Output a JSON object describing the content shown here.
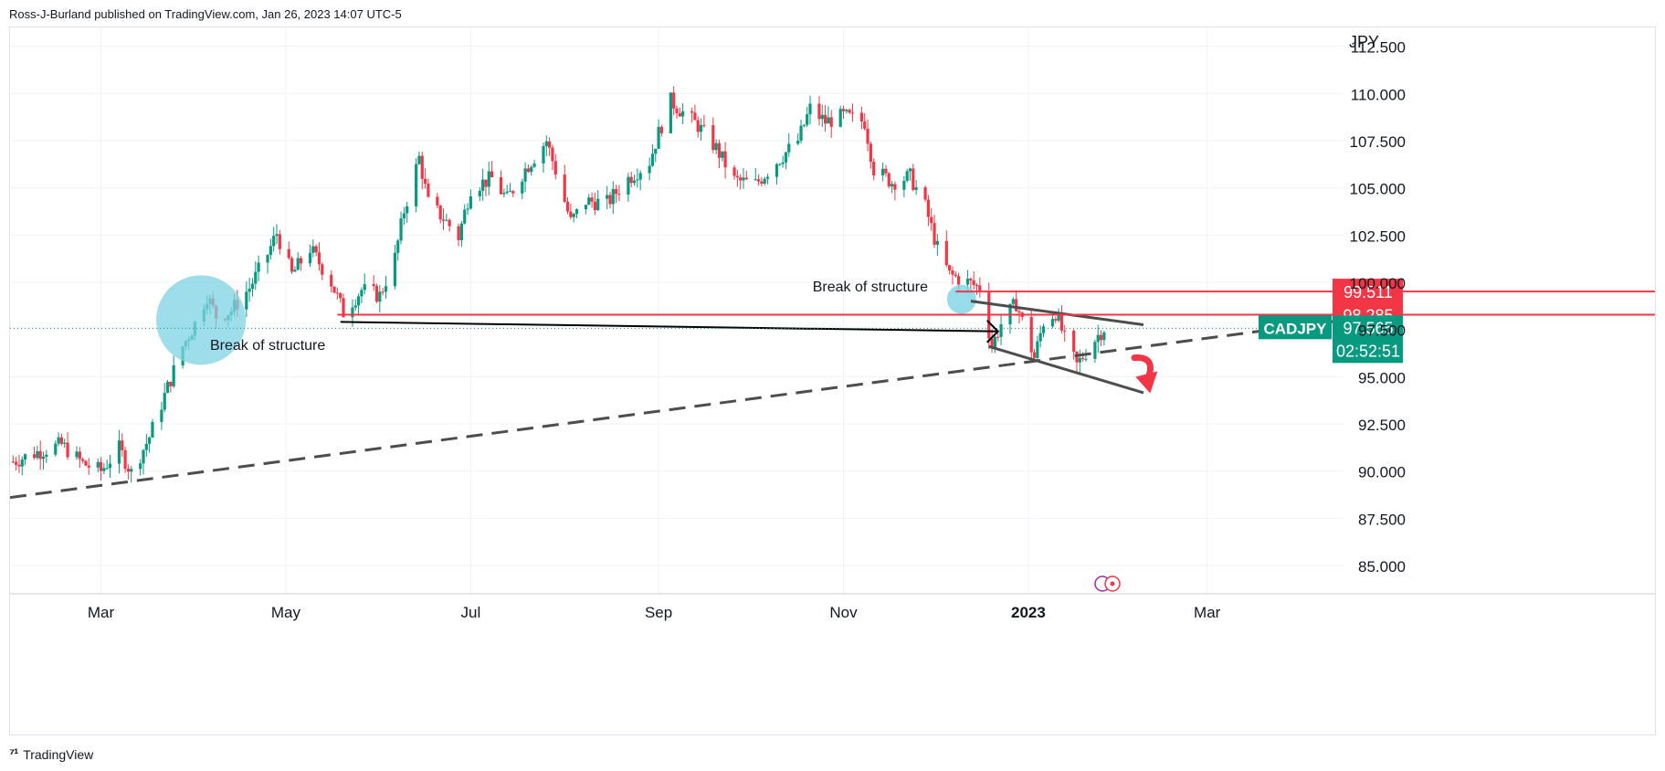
{
  "header": {
    "published": "Ross-J-Burland published on TradingView.com, Jan 26, 2023 14:07 UTC-5"
  },
  "footer": {
    "brand": "TradingView",
    "logo_icon": "tradingview-logo-icon"
  },
  "chart_data": {
    "type": "candlestick",
    "symbol": "CADJPY",
    "currency": "JPY",
    "price_axis": {
      "range": [
        83.5,
        113.5
      ],
      "ticks": [
        "112.500",
        "110.000",
        "107.500",
        "105.000",
        "102.500",
        "100.000",
        "97.500",
        "95.000",
        "92.500",
        "90.000",
        "87.500",
        "85.000"
      ],
      "tick_values": [
        112.5,
        110,
        107.5,
        105,
        102.5,
        100,
        97.5,
        95,
        92.5,
        90,
        87.5,
        85
      ]
    },
    "time_axis": {
      "range": [
        "2022-01-30",
        "2023-04-15"
      ],
      "labels": [
        {
          "text": "Mar",
          "date": "2022-03-01",
          "bold": false
        },
        {
          "text": "May",
          "date": "2022-05-01",
          "bold": false
        },
        {
          "text": "Jul",
          "date": "2022-07-01",
          "bold": false
        },
        {
          "text": "Sep",
          "date": "2022-09-01",
          "bold": false
        },
        {
          "text": "Nov",
          "date": "2022-11-01",
          "bold": false
        },
        {
          "text": "2023",
          "date": "2023-01-01",
          "bold": true
        },
        {
          "text": "Mar",
          "date": "2023-03-01",
          "bold": false
        }
      ]
    },
    "price_path": [
      [
        "2022-01-31",
        90.5
      ],
      [
        "2022-02-08",
        91.0
      ],
      [
        "2022-02-16",
        91.4
      ],
      [
        "2022-02-23",
        90.4
      ],
      [
        "2022-03-01",
        90.0
      ],
      [
        "2022-03-07",
        91.2
      ],
      [
        "2022-03-11",
        89.9
      ],
      [
        "2022-03-17",
        91.8
      ],
      [
        "2022-03-22",
        94.0
      ],
      [
        "2022-03-28",
        96.6
      ],
      [
        "2022-04-01",
        97.8
      ],
      [
        "2022-04-05",
        99.3
      ],
      [
        "2022-04-08",
        98.2
      ],
      [
        "2022-04-13",
        98.5
      ],
      [
        "2022-04-19",
        99.7
      ],
      [
        "2022-04-25",
        101.5
      ],
      [
        "2022-04-28",
        102.6
      ],
      [
        "2022-05-03",
        100.4
      ],
      [
        "2022-05-09",
        101.8
      ],
      [
        "2022-05-16",
        100.0
      ],
      [
        "2022-05-20",
        98.4
      ],
      [
        "2022-05-26",
        99.6
      ],
      [
        "2022-06-01",
        99.3
      ],
      [
        "2022-06-06",
        101.3
      ],
      [
        "2022-06-09",
        103.8
      ],
      [
        "2022-06-14",
        106.6
      ],
      [
        "2022-06-17",
        104.2
      ],
      [
        "2022-06-22",
        103.4
      ],
      [
        "2022-06-27",
        102.4
      ],
      [
        "2022-07-01",
        105.0
      ],
      [
        "2022-07-08",
        105.5
      ],
      [
        "2022-07-13",
        104.4
      ],
      [
        "2022-07-19",
        106.0
      ],
      [
        "2022-07-26",
        107.5
      ],
      [
        "2022-07-30",
        105.4
      ],
      [
        "2022-08-03",
        103.2
      ],
      [
        "2022-08-08",
        104.3
      ],
      [
        "2022-08-15",
        104.2
      ],
      [
        "2022-08-22",
        105.5
      ],
      [
        "2022-08-29",
        106.4
      ],
      [
        "2022-09-01",
        107.9
      ],
      [
        "2022-09-05",
        109.6
      ],
      [
        "2022-09-09",
        109.0
      ],
      [
        "2022-09-14",
        108.3
      ],
      [
        "2022-09-20",
        107.1
      ],
      [
        "2022-09-26",
        105.4
      ],
      [
        "2022-10-03",
        105.2
      ],
      [
        "2022-10-10",
        106.4
      ],
      [
        "2022-10-17",
        107.5
      ],
      [
        "2022-10-21",
        109.2
      ],
      [
        "2022-10-26",
        108.5
      ],
      [
        "2022-11-01",
        108.8
      ],
      [
        "2022-11-08",
        108.5
      ],
      [
        "2022-11-11",
        106.0
      ],
      [
        "2022-11-17",
        105.3
      ],
      [
        "2022-11-23",
        105.6
      ],
      [
        "2022-11-28",
        104.0
      ],
      [
        "2022-12-02",
        101.8
      ],
      [
        "2022-12-06",
        100.4
      ],
      [
        "2022-12-12",
        100.0
      ],
      [
        "2022-12-16",
        99.7
      ],
      [
        "2022-12-20",
        96.6
      ],
      [
        "2022-12-23",
        97.8
      ],
      [
        "2022-12-28",
        98.9
      ],
      [
        "2023-01-03",
        96.0
      ],
      [
        "2023-01-06",
        97.9
      ],
      [
        "2023-01-10",
        98.4
      ],
      [
        "2023-01-13",
        97.0
      ],
      [
        "2023-01-17",
        95.6
      ],
      [
        "2023-01-20",
        96.3
      ],
      [
        "2023-01-24",
        97.2
      ],
      [
        "2023-01-26",
        97.565
      ]
    ],
    "last_price": {
      "symbol": "CADJPY",
      "price": "97.565",
      "countdown": "02:52:51",
      "value": 97.565
    },
    "horizontal_levels": [
      {
        "label": "99.511",
        "value": 99.511,
        "start": "2022-12-08"
      },
      {
        "label": "98.285",
        "value": 98.285,
        "start": "2022-05-18"
      }
    ],
    "annotations": {
      "break_of_structure_left": "Break of structure",
      "break_of_structure_right": "Break of structure"
    },
    "drawings": {
      "bos_circle_left": {
        "date": "2022-04-03",
        "price": 98.0
      },
      "bos_circle_right": {
        "date": "2022-12-10",
        "price": 99.1
      },
      "long_arrow": {
        "from": [
          "2022-05-19",
          97.9
        ],
        "to": [
          "2022-12-22",
          97.4
        ]
      },
      "trend_support_dashed": {
        "from": [
          "2022-01-30",
          88.6
        ],
        "to": [
          "2023-04-15",
          98.0
        ]
      },
      "channel_upper": {
        "from": [
          "2022-12-13",
          99.0
        ],
        "to": [
          "2023-02-08",
          97.75
        ]
      },
      "channel_lower": {
        "from": [
          "2022-12-19",
          96.6
        ],
        "to": [
          "2023-02-08",
          94.15
        ]
      },
      "red_arrow": {
        "from": [
          "2023-02-05",
          96.0
        ],
        "to": [
          "2023-02-09",
          94.7
        ]
      }
    },
    "colors": {
      "up": "#089981",
      "down": "#f23645",
      "level": "#f23645",
      "last_price": "#089981",
      "circle": "#7dd3e3",
      "trend": "#4d4d4d",
      "grid": "#f0f3fa",
      "text": "#131722"
    }
  }
}
